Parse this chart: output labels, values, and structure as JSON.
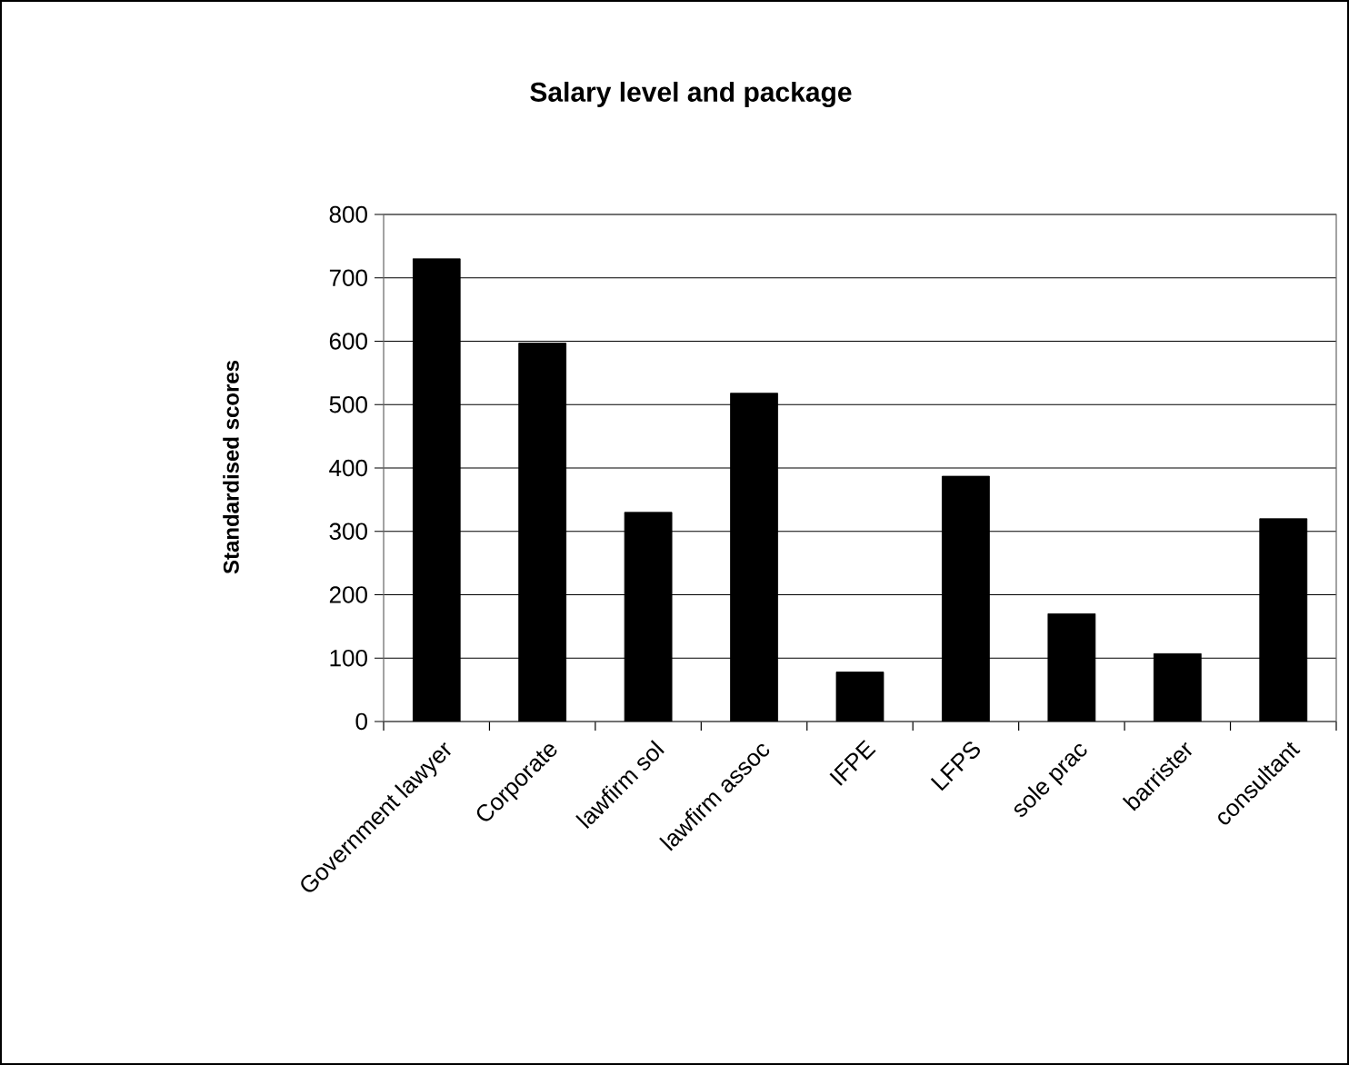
{
  "chart_data": {
    "type": "bar",
    "title": "Salary level and package",
    "ylabel": "Standardised scores",
    "categories": [
      "Government lawyer",
      "Corporate",
      "lawfirm sol",
      "lawfirm assoc",
      "IFPE",
      "LFPS",
      "sole prac",
      "barrister",
      "consultant"
    ],
    "values": [
      730,
      597,
      330,
      518,
      78,
      387,
      170,
      107,
      320
    ],
    "color": "#000000",
    "ylim": [
      0,
      800
    ],
    "yticks": [
      0,
      100,
      200,
      300,
      400,
      500,
      600,
      700,
      800
    ],
    "grid": "y"
  }
}
